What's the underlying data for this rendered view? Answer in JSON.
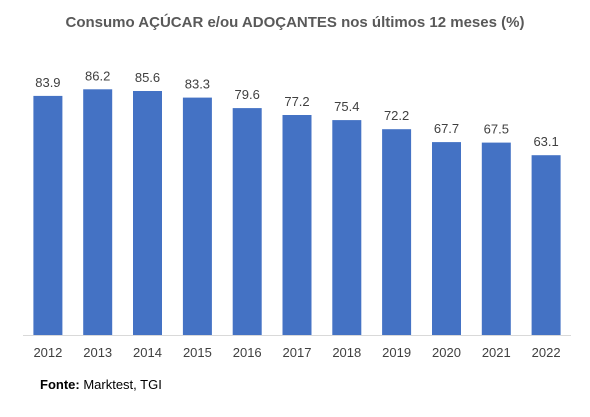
{
  "chart_data": {
    "type": "bar",
    "title": "Consumo AÇÚCAR e/ou ADOÇANTES nos últimos 12 meses (%)",
    "xlabel": "",
    "ylabel": "",
    "categories": [
      "2012",
      "2013",
      "2014",
      "2015",
      "2016",
      "2017",
      "2018",
      "2019",
      "2020",
      "2021",
      "2022"
    ],
    "values": [
      83.9,
      86.2,
      85.6,
      83.3,
      79.6,
      77.2,
      75.4,
      72.2,
      67.7,
      67.5,
      63.1
    ],
    "data_labels": [
      "83.9",
      "86.2",
      "85.6",
      "83.3",
      "79.6",
      "77.2",
      "75.4",
      "72.2",
      "67.7",
      "67.5",
      "63.1"
    ],
    "ylim": [
      0,
      100
    ],
    "grid": false,
    "legend": "none",
    "bar_color": "#4472C4",
    "baseline_color": "#D9D9D9"
  },
  "source": {
    "label": "Fonte:",
    "text": " Marktest, TGI"
  }
}
